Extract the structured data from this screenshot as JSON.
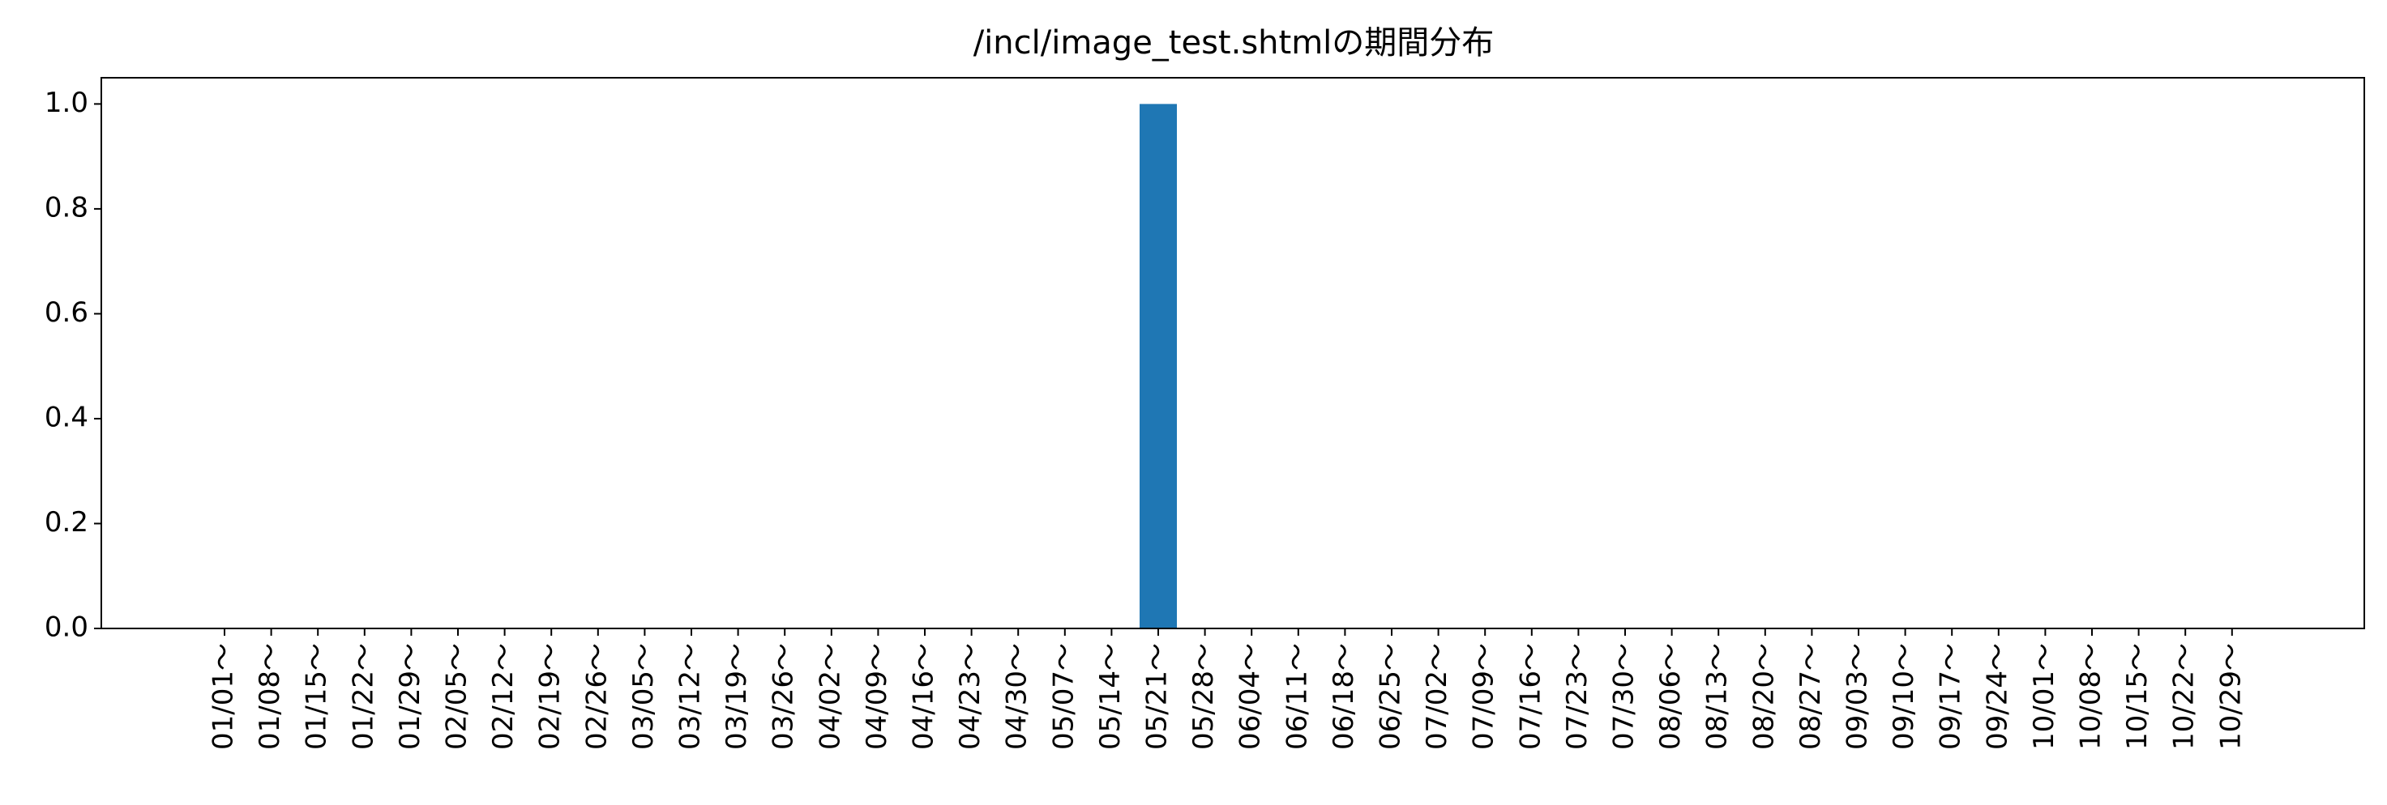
{
  "chart_data": {
    "type": "bar",
    "title": "/incl/image_test.shtmlの期間分布",
    "xlabel": "",
    "ylabel": "",
    "categories": [
      "01/01～",
      "01/08～",
      "01/15～",
      "01/22～",
      "01/29～",
      "02/05～",
      "02/12～",
      "02/19～",
      "02/26～",
      "03/05～",
      "03/12～",
      "03/19～",
      "03/26～",
      "04/02～",
      "04/09～",
      "04/16～",
      "04/23～",
      "04/30～",
      "05/07～",
      "05/14～",
      "05/21～",
      "05/28～",
      "06/04～",
      "06/11～",
      "06/18～",
      "06/25～",
      "07/02～",
      "07/09～",
      "07/16～",
      "07/23～",
      "07/30～",
      "08/06～",
      "08/13～",
      "08/20～",
      "08/27～",
      "09/03～",
      "09/10～",
      "09/17～",
      "09/24～",
      "10/01～",
      "10/08～",
      "10/15～",
      "10/22～",
      "10/29～"
    ],
    "values": [
      0,
      0,
      0,
      0,
      0,
      0,
      0,
      0,
      0,
      0,
      0,
      0,
      0,
      0,
      0,
      0,
      0,
      0,
      0,
      0,
      1,
      0,
      0,
      0,
      0,
      0,
      0,
      0,
      0,
      0,
      0,
      0,
      0,
      0,
      0,
      0,
      0,
      0,
      0,
      0,
      0,
      0,
      0,
      0
    ],
    "ylim": [
      0,
      1.05
    ],
    "yticks": [
      "0.0",
      "0.2",
      "0.4",
      "0.6",
      "0.8",
      "1.0"
    ],
    "bar_color": "#1f77b4",
    "grid": false,
    "legend": "none"
  }
}
